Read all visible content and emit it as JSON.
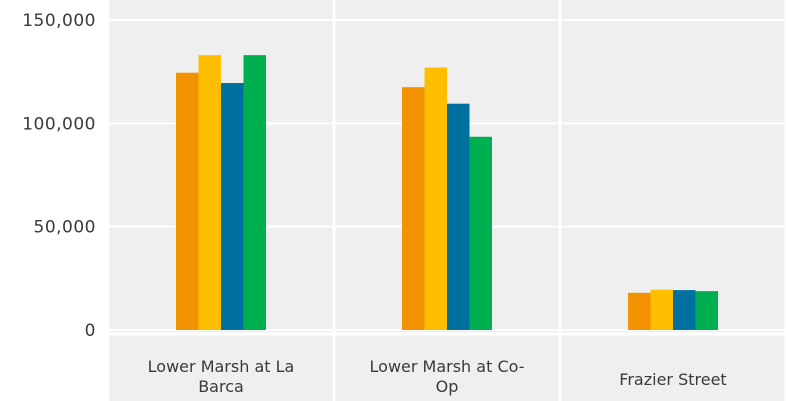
{
  "chart_data": {
    "type": "bar",
    "categories": [
      [
        "Lower Marsh at La",
        "Barca"
      ],
      [
        "Lower Marsh at Co-",
        "Op"
      ],
      [
        "Frazier Street"
      ]
    ],
    "series": [
      {
        "color": "#f29200",
        "values": [
          124500,
          117500,
          18000
        ]
      },
      {
        "color": "#ffbf00",
        "values": [
          133000,
          127000,
          19500
        ]
      },
      {
        "color": "#00709f",
        "values": [
          119500,
          109500,
          19300
        ]
      },
      {
        "color": "#00b050",
        "values": [
          133000,
          93500,
          18800
        ]
      }
    ],
    "ylim": [
      0,
      155000
    ],
    "yticks": [
      0,
      50000,
      100000,
      150000
    ],
    "ytick_labels": [
      "0",
      "50,000",
      "100,000",
      "150,000"
    ],
    "grid": true,
    "background": "#efefef",
    "gridline_color": "#ffffff"
  }
}
